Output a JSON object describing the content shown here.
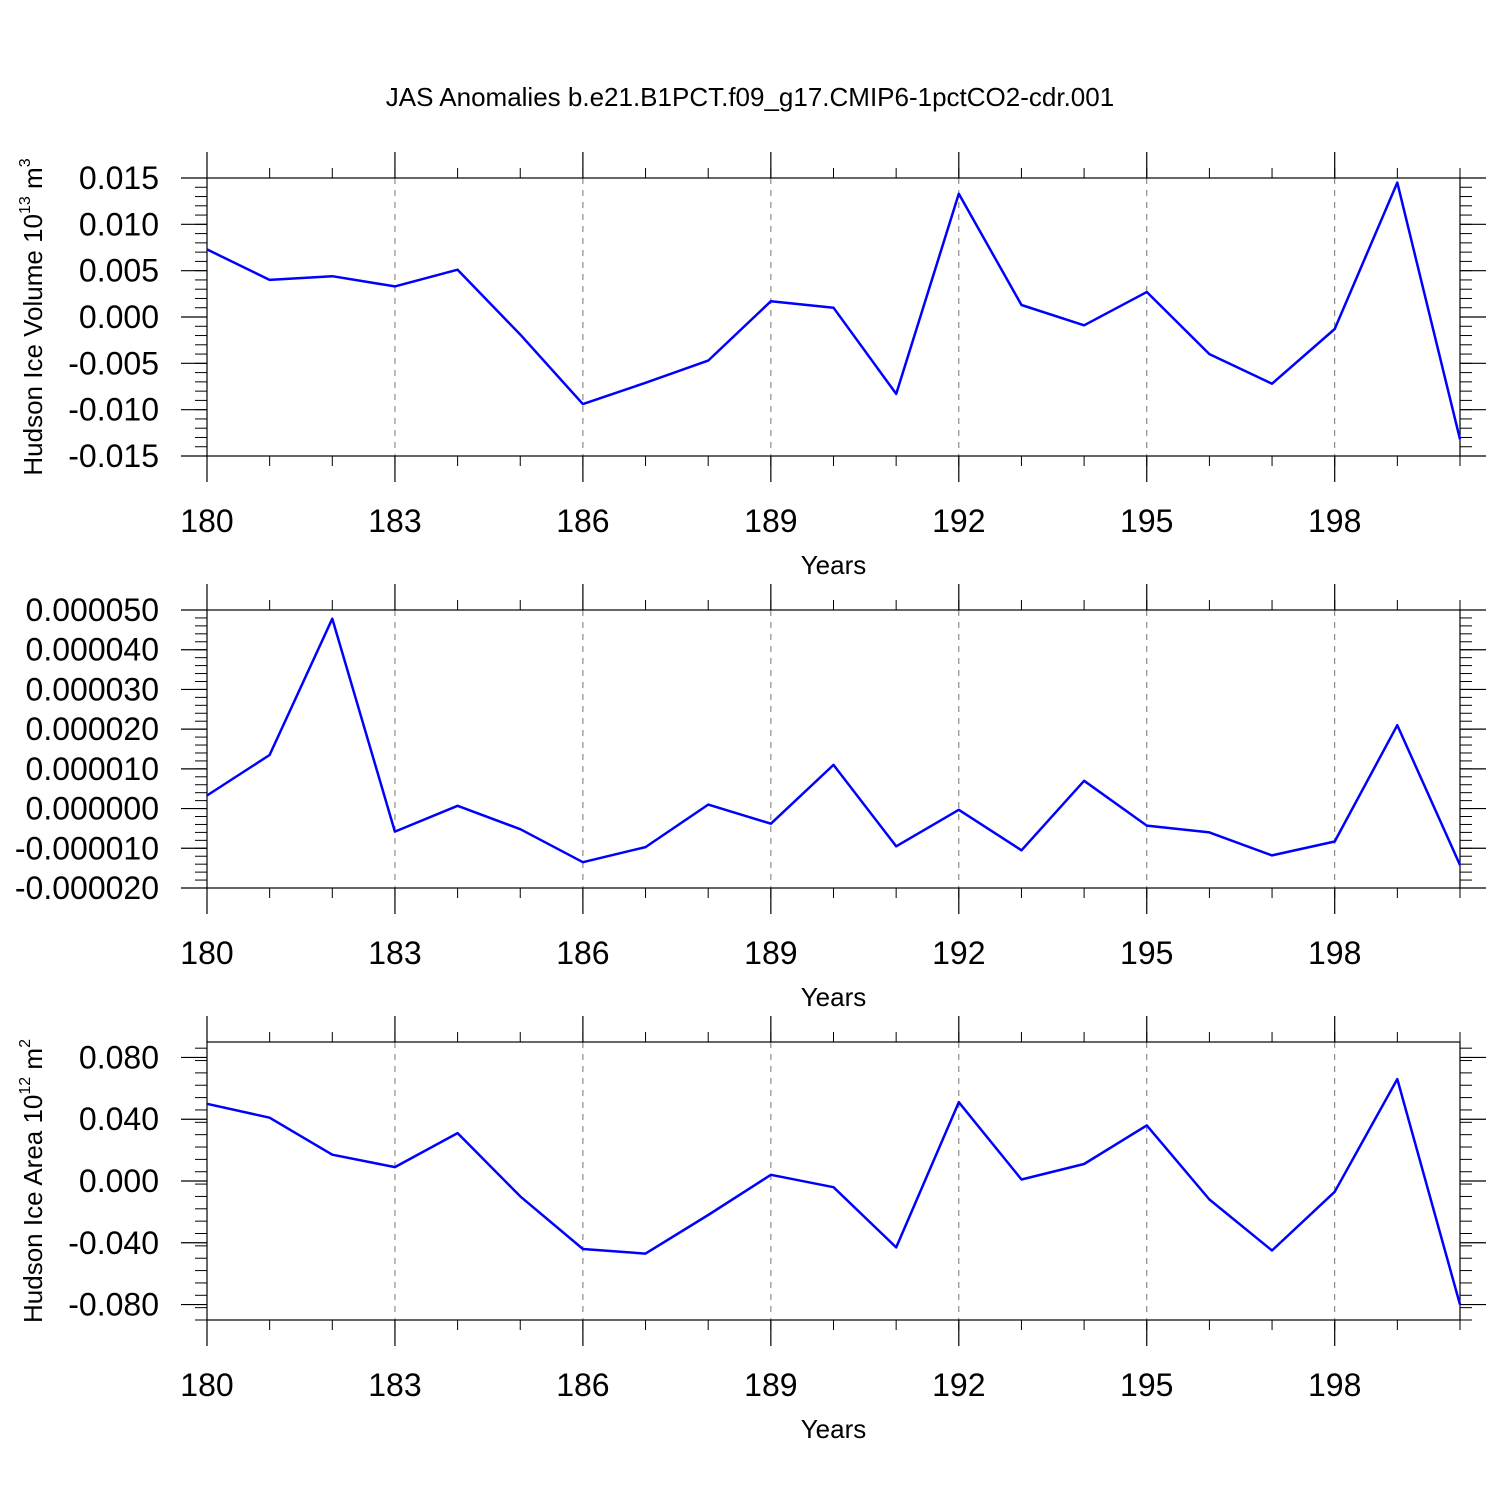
{
  "title": "JAS Anomalies b.e21.B1PCT.f09_g17.CMIP6-1pctCO2-cdr.001",
  "colors": {
    "line": "#0000ff",
    "axis": "#000000",
    "grid": "#777777"
  },
  "chart_data": [
    {
      "type": "line",
      "ylabel_parts": [
        "Hudson Ice Volume 10",
        "13",
        " m",
        "3"
      ],
      "xlabel": "Years",
      "xlim": [
        180,
        200
      ],
      "ylim": [
        -0.015,
        0.015
      ],
      "x_ticks": [
        "180",
        "183",
        "186",
        "189",
        "192",
        "195",
        "198"
      ],
      "y_ticks": [
        "0.015",
        "0.010",
        "0.005",
        "0.000",
        "-0.005",
        "-0.010",
        "-0.015"
      ],
      "x": [
        180,
        181,
        182,
        183,
        184,
        185,
        186,
        187,
        188,
        189,
        190,
        191,
        192,
        193,
        194,
        195,
        196,
        197,
        198,
        199,
        200
      ],
      "series": [
        {
          "values": [
            0.0073,
            0.004,
            0.0044,
            0.0033,
            0.0051,
            -0.0019,
            -0.0094,
            -0.0071,
            -0.0047,
            0.0017,
            0.001,
            -0.0083,
            0.0133,
            0.0013,
            -0.0009,
            0.0027,
            -0.004,
            -0.0072,
            -0.0013,
            0.0145,
            -0.0132
          ]
        }
      ]
    },
    {
      "type": "line",
      "ylabel_parts": [],
      "xlabel": "Years",
      "xlim": [
        180,
        200
      ],
      "ylim": [
        -2e-05,
        5e-05
      ],
      "x_ticks": [
        "180",
        "183",
        "186",
        "189",
        "192",
        "195",
        "198"
      ],
      "y_ticks": [
        "0.000050",
        "0.000040",
        "0.000030",
        "0.000020",
        "0.000010",
        "0.000000",
        "-0.000010",
        "-0.000020"
      ],
      "x": [
        180,
        181,
        182,
        183,
        184,
        185,
        186,
        187,
        188,
        189,
        190,
        191,
        192,
        193,
        194,
        195,
        196,
        197,
        198,
        199,
        200
      ],
      "series": [
        {
          "values": [
            3.3e-06,
            1.35e-05,
            4.78e-05,
            -5.8e-06,
            7e-07,
            -5.2e-06,
            -1.35e-05,
            -9.7e-06,
            1e-06,
            -3.8e-06,
            1.1e-05,
            -9.5e-06,
            -3e-07,
            -1.05e-05,
            7e-06,
            -4.3e-06,
            -6e-06,
            -1.18e-05,
            -8.3e-06,
            2.1e-05,
            -1.42e-05
          ]
        }
      ]
    },
    {
      "type": "line",
      "ylabel_parts": [
        "Hudson Ice Area 10",
        "12",
        " m",
        "2"
      ],
      "xlabel": "Years",
      "xlim": [
        180,
        200
      ],
      "ylim": [
        -0.09,
        0.09
      ],
      "x_ticks": [
        "180",
        "183",
        "186",
        "189",
        "192",
        "195",
        "198"
      ],
      "y_ticks": [
        "0.080",
        "0.040",
        "0.000",
        "-0.040",
        "-0.080"
      ],
      "x": [
        180,
        181,
        182,
        183,
        184,
        185,
        186,
        187,
        188,
        189,
        190,
        191,
        192,
        193,
        194,
        195,
        196,
        197,
        198,
        199,
        200
      ],
      "series": [
        {
          "values": [
            0.05,
            0.041,
            0.017,
            0.009,
            0.031,
            -0.01,
            -0.044,
            -0.047,
            -0.022,
            0.004,
            -0.004,
            -0.043,
            0.051,
            0.001,
            0.011,
            0.036,
            -0.012,
            -0.045,
            -0.007,
            0.066,
            -0.08
          ]
        }
      ]
    }
  ]
}
